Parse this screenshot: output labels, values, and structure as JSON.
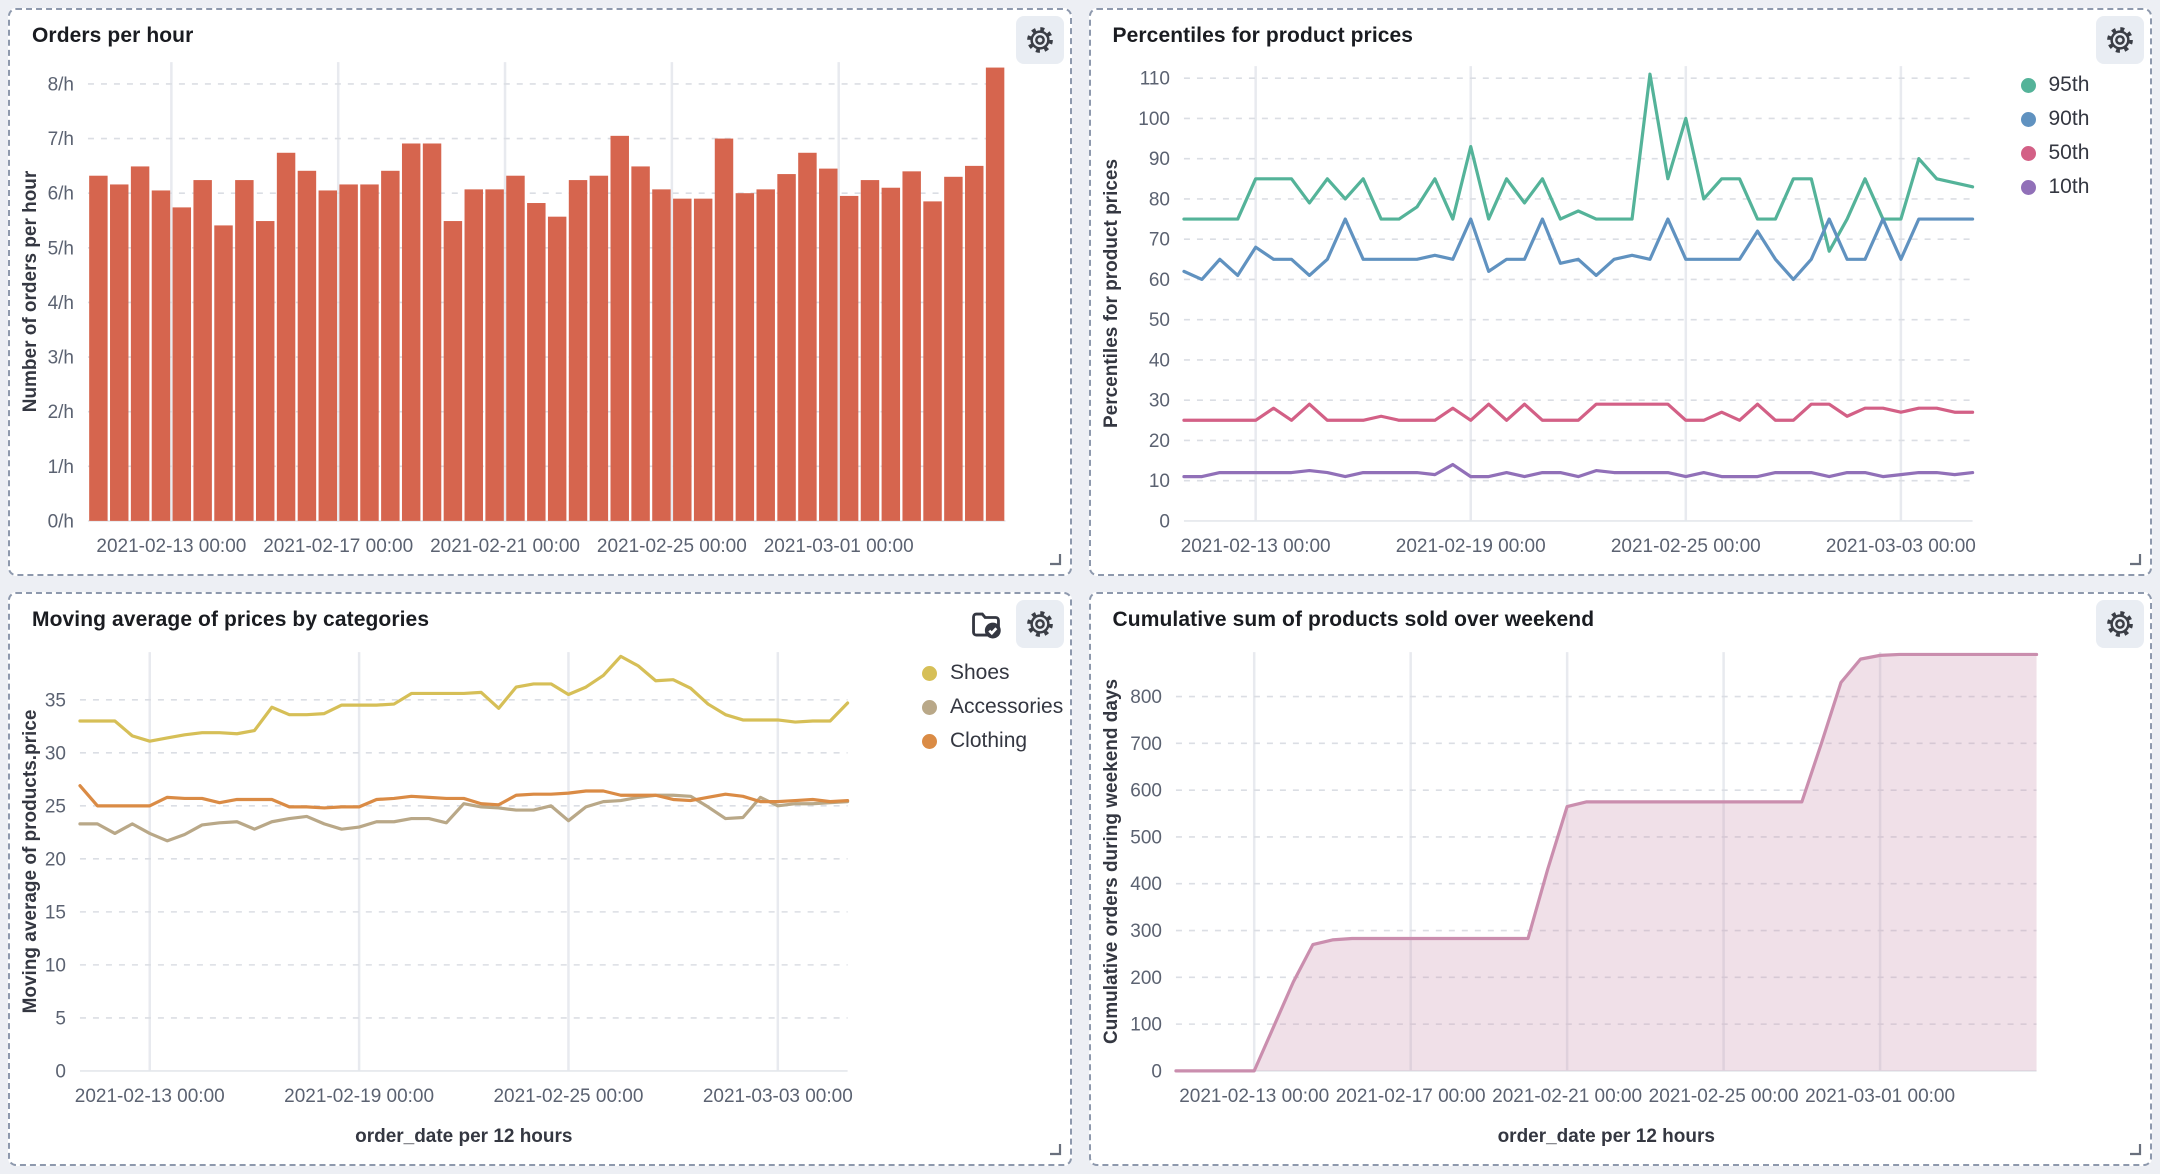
{
  "page": {
    "background": "#edeff4",
    "panel_border": "#8e99ad"
  },
  "panels": [
    {
      "title": "Orders per hour",
      "actions": [
        "gear-icon"
      ],
      "chart_data": {
        "type": "bar",
        "color": "#D6654E",
        "title": "Orders per hour",
        "xlabel": "",
        "ylabel": "Number of orders per hour",
        "ylim": [
          0,
          8.4
        ],
        "grid": true,
        "x_start": "2021-02-11 00:00",
        "x_step_hours": 12,
        "values": [
          6.32,
          6.16,
          6.49,
          6.05,
          5.74,
          6.24,
          5.41,
          6.24,
          5.49,
          6.74,
          6.41,
          6.05,
          6.16,
          6.16,
          6.41,
          6.91,
          6.91,
          5.49,
          6.07,
          6.07,
          6.32,
          5.82,
          5.57,
          6.24,
          6.32,
          7.05,
          6.49,
          6.07,
          5.9,
          5.9,
          7.0,
          6.0,
          6.07,
          6.35,
          6.74,
          6.45,
          5.95,
          6.24,
          6.1,
          6.4,
          5.85,
          6.3,
          6.5,
          8.3
        ],
        "yticks": [
          {
            "v": 0,
            "label": "0/h"
          },
          {
            "v": 1,
            "label": "1/h"
          },
          {
            "v": 2,
            "label": "2/h"
          },
          {
            "v": 3,
            "label": "3/h"
          },
          {
            "v": 4,
            "label": "4/h"
          },
          {
            "v": 5,
            "label": "5/h"
          },
          {
            "v": 6,
            "label": "6/h"
          },
          {
            "v": 7,
            "label": "7/h"
          },
          {
            "v": 8,
            "label": "8/h"
          }
        ],
        "xticks": [
          {
            "label": "2021-02-13 00:00",
            "index": 4
          },
          {
            "label": "2021-02-17 00:00",
            "index": 12
          },
          {
            "label": "2021-02-21 00:00",
            "index": 20
          },
          {
            "label": "2021-02-25 00:00",
            "index": 28
          },
          {
            "label": "2021-03-01 00:00",
            "index": 36
          }
        ]
      }
    },
    {
      "title": "Percentiles for product prices",
      "actions": [
        "gear-icon"
      ],
      "chart_data": {
        "type": "line",
        "title": "Percentiles for product prices",
        "xlabel": "",
        "ylabel": "Percentiles for product prices",
        "ylim": [
          0,
          113
        ],
        "grid": true,
        "legend_position": "right",
        "x_start": "2021-02-11 00:00",
        "x_step_hours": 12,
        "series": [
          {
            "name": "95th",
            "color": "#54B399",
            "values": [
              75,
              75,
              75,
              75,
              85,
              85,
              85,
              79,
              85,
              80,
              85,
              75,
              75,
              78,
              85,
              75,
              93,
              75,
              85,
              79,
              85,
              75,
              77,
              75,
              75,
              75,
              111,
              85,
              100,
              80,
              85,
              85,
              75,
              75,
              85,
              85,
              67,
              75,
              85,
              75,
              75,
              90,
              85,
              84,
              83
            ]
          },
          {
            "name": "90th",
            "color": "#6092C0",
            "values": [
              62,
              60,
              65,
              61,
              68,
              65,
              65,
              61,
              65,
              75,
              65,
              65,
              65,
              65,
              66,
              65,
              75,
              62,
              65,
              65,
              75,
              64,
              65,
              61,
              65,
              66,
              65,
              75,
              65,
              65,
              65,
              65,
              72,
              65,
              60,
              65,
              75,
              65,
              65,
              75,
              65,
              75,
              75,
              75,
              75
            ]
          },
          {
            "name": "50th",
            "color": "#D36086",
            "values": [
              25,
              25,
              25,
              25,
              25,
              28,
              25,
              29,
              25,
              25,
              25,
              26,
              25,
              25,
              25,
              28,
              25,
              29,
              25,
              29,
              25,
              25,
              25,
              29,
              29,
              29,
              29,
              29,
              25,
              25,
              27,
              25,
              29,
              25,
              25,
              29,
              29,
              26,
              28,
              28,
              27,
              28,
              28,
              27,
              27
            ]
          },
          {
            "name": "10th",
            "color": "#9170B8",
            "values": [
              11,
              11,
              12,
              12,
              12,
              12,
              12,
              12.5,
              12,
              11,
              12,
              12,
              12,
              12,
              11.5,
              14,
              11,
              11,
              12,
              11,
              12,
              12,
              11,
              12.5,
              12,
              12,
              12,
              12,
              11,
              12,
              11,
              11,
              11,
              12,
              12,
              12,
              11,
              12,
              12,
              11,
              11.5,
              12,
              12,
              11.5,
              12
            ]
          }
        ],
        "yticks": [
          {
            "v": 0,
            "label": "0"
          },
          {
            "v": 10,
            "label": "10"
          },
          {
            "v": 20,
            "label": "20"
          },
          {
            "v": 30,
            "label": "30"
          },
          {
            "v": 40,
            "label": "40"
          },
          {
            "v": 50,
            "label": "50"
          },
          {
            "v": 60,
            "label": "60"
          },
          {
            "v": 70,
            "label": "70"
          },
          {
            "v": 80,
            "label": "80"
          },
          {
            "v": 90,
            "label": "90"
          },
          {
            "v": 100,
            "label": "100"
          },
          {
            "v": 110,
            "label": "110"
          }
        ],
        "xticks": [
          {
            "label": "2021-02-13 00:00",
            "index": 4
          },
          {
            "label": "2021-02-19 00:00",
            "index": 16
          },
          {
            "label": "2021-02-25 00:00",
            "index": 28
          },
          {
            "label": "2021-03-03 00:00",
            "index": 40
          }
        ]
      }
    },
    {
      "title": "Moving average of prices by categories",
      "actions": [
        "folder-check-icon",
        "gear-icon"
      ],
      "chart_data": {
        "type": "line",
        "title": "Moving average of prices by categories",
        "xlabel": "order_date per 12 hours",
        "ylabel": "Moving average of products.price",
        "ylim": [
          0,
          39.5
        ],
        "grid": true,
        "legend_position": "right",
        "x_start": "2021-02-11 00:00",
        "x_step_hours": 12,
        "series": [
          {
            "name": "Shoes",
            "color": "#D6BF57",
            "values": [
              33,
              33,
              33,
              31.6,
              31.1,
              31.4,
              31.7,
              31.9,
              31.9,
              31.8,
              32.1,
              34.3,
              33.6,
              33.6,
              33.7,
              34.5,
              34.5,
              34.5,
              34.6,
              35.6,
              35.6,
              35.6,
              35.6,
              35.7,
              34.2,
              36.2,
              36.5,
              36.5,
              35.5,
              36.2,
              37.3,
              39.1,
              38.2,
              36.8,
              36.9,
              36.1,
              34.6,
              33.6,
              33.1,
              33.1,
              33.1,
              32.9,
              33.0,
              33.0,
              34.7
            ]
          },
          {
            "name": "Accessories",
            "color": "#B9A888",
            "values": [
              23.3,
              23.3,
              22.4,
              23.3,
              22.4,
              21.7,
              22.3,
              23.2,
              23.4,
              23.5,
              22.8,
              23.5,
              23.8,
              24.0,
              23.3,
              22.8,
              23.0,
              23.5,
              23.5,
              23.8,
              23.8,
              23.4,
              25.2,
              24.9,
              24.8,
              24.6,
              24.6,
              25.0,
              23.6,
              24.9,
              25.4,
              25.5,
              25.8,
              26.0,
              26.0,
              25.9,
              24.9,
              23.8,
              23.9,
              25.8,
              25.0,
              25.2,
              25.2,
              25.3,
              25.4
            ]
          },
          {
            "name": "Clothing",
            "color": "#DA8B45",
            "values": [
              26.9,
              25.0,
              25.0,
              25.0,
              25.0,
              25.8,
              25.7,
              25.7,
              25.3,
              25.6,
              25.6,
              25.6,
              24.9,
              24.9,
              24.8,
              24.9,
              24.9,
              25.6,
              25.7,
              25.9,
              25.8,
              25.7,
              25.7,
              25.2,
              25.1,
              26.0,
              26.1,
              26.1,
              26.2,
              26.4,
              26.4,
              26.0,
              26.0,
              26.0,
              25.6,
              25.5,
              25.8,
              26.1,
              25.9,
              25.4,
              25.4,
              25.5,
              25.6,
              25.4,
              25.5
            ]
          }
        ],
        "yticks": [
          {
            "v": 0,
            "label": "0"
          },
          {
            "v": 5,
            "label": "5"
          },
          {
            "v": 10,
            "label": "10"
          },
          {
            "v": 15,
            "label": "15"
          },
          {
            "v": 20,
            "label": "20"
          },
          {
            "v": 25,
            "label": "25"
          },
          {
            "v": 30,
            "label": "30"
          },
          {
            "v": 35,
            "label": "35"
          }
        ],
        "xticks": [
          {
            "label": "2021-02-13 00:00",
            "index": 4
          },
          {
            "label": "2021-02-19 00:00",
            "index": 16
          },
          {
            "label": "2021-02-25 00:00",
            "index": 28
          },
          {
            "label": "2021-03-03 00:00",
            "index": 40
          }
        ]
      }
    },
    {
      "title": "Cumulative sum of products sold over weekend",
      "actions": [
        "gear-icon"
      ],
      "chart_data": {
        "type": "area",
        "title": "Cumulative sum of products sold over weekend",
        "xlabel": "order_date per 12 hours",
        "ylabel": "Cumulative orders during weekend days",
        "ylim": [
          0,
          895
        ],
        "grid": true,
        "x_start": "2021-02-11 00:00",
        "x_step_hours": 12,
        "series": [
          {
            "name": "Cumulative orders during weekend days",
            "color": "#CA8EAE",
            "fill": "rgba(202,142,174,0.28)",
            "values": [
              0,
              0,
              0,
              0,
              0,
              95,
              190,
              270,
              280,
              283,
              283,
              283,
              283,
              283,
              283,
              283,
              283,
              283,
              283,
              430,
              565,
              575,
              575,
              575,
              575,
              575,
              575,
              575,
              575,
              575,
              575,
              575,
              575,
              700,
              830,
              880,
              888,
              890,
              890,
              890,
              890,
              890,
              890,
              890,
              890
            ]
          }
        ],
        "yticks": [
          {
            "v": 0,
            "label": "0"
          },
          {
            "v": 100,
            "label": "100"
          },
          {
            "v": 200,
            "label": "200"
          },
          {
            "v": 300,
            "label": "300"
          },
          {
            "v": 400,
            "label": "400"
          },
          {
            "v": 500,
            "label": "500"
          },
          {
            "v": 600,
            "label": "600"
          },
          {
            "v": 700,
            "label": "700"
          },
          {
            "v": 800,
            "label": "800"
          }
        ],
        "xticks": [
          {
            "label": "2021-02-13 00:00",
            "index": 4
          },
          {
            "label": "2021-02-17 00:00",
            "index": 12
          },
          {
            "label": "2021-02-21 00:00",
            "index": 20
          },
          {
            "label": "2021-02-25 00:00",
            "index": 28
          },
          {
            "label": "2021-03-01 00:00",
            "index": 36
          }
        ]
      }
    }
  ]
}
